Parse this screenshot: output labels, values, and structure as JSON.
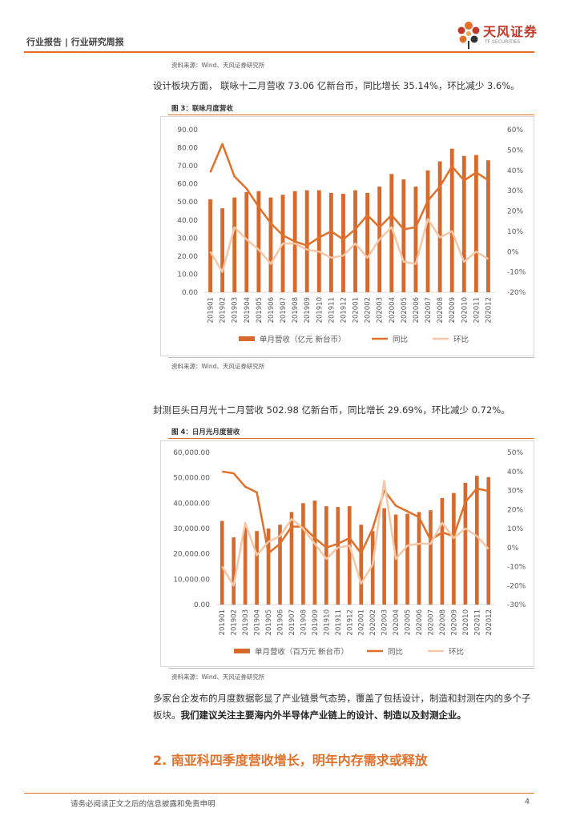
{
  "header": {
    "left_text": "行业报告 | 行业研究周报",
    "logo_main": "天风证券",
    "logo_sub": "TF SECURITIES"
  },
  "colors": {
    "accent": "#e0702a",
    "bar": "#d6692b",
    "yoy": "#e0702a",
    "mom": "#f6c6a6"
  },
  "source_top": "资料来源：Wind、天风证券研究所",
  "para1": "设计板块方面， 联咏十二月营收 73.06 亿新台币，同比增长 35.14%，环比减少 3.6%。",
  "fig3": {
    "label": "图 3：联咏月度营收",
    "source": "资料来源：Wind、天风证券研究所"
  },
  "para2": "封测巨头日月光十二月营收 502.98 亿新台币，同比增长 29.69%，环比减少 0.72%。",
  "fig4": {
    "label": "图 4：日月光月度营收",
    "source": "资料来源：Wind、天风证券研究所"
  },
  "para3": {
    "normal": "多家台企发布的月度数据彰显了产业链景气态势，覆盖了包括设计，制造和封测在内的多个子板块。",
    "bold": "我们建议关注主要海内外半导体产业链上的设计、制造以及封测企业。"
  },
  "section_title": "2. 南亚科四季度营收增长，明年内存需求或释放",
  "footer": {
    "disclaimer": "请务必阅读正文之后的信息披露和免责申明",
    "page": "4"
  },
  "chart_data": [
    {
      "type": "bar",
      "categories": [
        "201901",
        "201902",
        "201903",
        "201904",
        "201905",
        "201906",
        "201907",
        "201908",
        "201909",
        "201910",
        "201911",
        "201912",
        "202001",
        "202002",
        "202003",
        "202004",
        "202005",
        "202006",
        "202007",
        "202008",
        "202009",
        "202010",
        "202011",
        "202012"
      ],
      "yticks": [
        "90.00",
        "80.00",
        "70.00",
        "60.00",
        "50.00",
        "40.00",
        "30.00",
        "20.00",
        "10.00",
        "0.00"
      ],
      "y2ticks": [
        "60%",
        "50%",
        "40%",
        "30%",
        "20%",
        "10%",
        "0%",
        "-10%",
        "-20%"
      ],
      "ylim": [
        0,
        90
      ],
      "y2lim": [
        -20,
        60
      ],
      "series": [
        {
          "name": "单月营收（亿元 新台币）",
          "kind": "bar",
          "axis": "left",
          "values": [
            51.5,
            46.5,
            52.5,
            55.5,
            56,
            52.5,
            54,
            56,
            56.5,
            56.5,
            55,
            54.5,
            56.5,
            55,
            58.5,
            65.5,
            62.5,
            58.5,
            67.5,
            72.5,
            79.5,
            75.5,
            76,
            73.06
          ]
        },
        {
          "name": "同比",
          "kind": "line",
          "axis": "right",
          "values": [
            39,
            53,
            37,
            31,
            22,
            14,
            8,
            5,
            3,
            7,
            10,
            6,
            11,
            18,
            12,
            18,
            11,
            12,
            25,
            32,
            42,
            35,
            39,
            35.14
          ]
        },
        {
          "name": "环比",
          "kind": "line",
          "axis": "right",
          "values": [
            0,
            -10,
            12,
            6,
            1,
            -6,
            4,
            4,
            1,
            0,
            -3,
            -2,
            4,
            -3,
            6,
            12,
            -5,
            -6,
            16,
            7,
            10,
            -5,
            0,
            -3.6
          ]
        }
      ]
    },
    {
      "type": "bar",
      "categories": [
        "201901",
        "201902",
        "201903",
        "201904",
        "201905",
        "201906",
        "201907",
        "201908",
        "201909",
        "201910",
        "201911",
        "201912",
        "202001",
        "202002",
        "202003",
        "202004",
        "202005",
        "202006",
        "202007",
        "202008",
        "202009",
        "202010",
        "202011",
        "202012"
      ],
      "yticks": [
        "60,000.00",
        "50,000.00",
        "40,000.00",
        "30,000.00",
        "20,000.00",
        "10,000.00",
        "0.00"
      ],
      "y2ticks": [
        "50%",
        "40%",
        "30%",
        "20%",
        "10%",
        "0%",
        "-10%",
        "-20%",
        "-30%"
      ],
      "ylim": [
        0,
        60000
      ],
      "y2lim": [
        -30,
        50
      ],
      "series": [
        {
          "name": "单月营收（百万元 新台币）",
          "kind": "bar",
          "axis": "left",
          "values": [
            33000,
            26500,
            30500,
            29000,
            30000,
            31500,
            36500,
            40000,
            41000,
            38800,
            38500,
            38800,
            31500,
            29000,
            38000,
            35500,
            35800,
            36500,
            37200,
            42000,
            44000,
            48000,
            50800,
            50298
          ]
        },
        {
          "name": "同比",
          "kind": "line",
          "axis": "right",
          "values": [
            40,
            39,
            32,
            29,
            -3,
            2,
            11,
            11,
            5,
            0,
            2,
            5,
            -3,
            10,
            30,
            22,
            19,
            16,
            4,
            8,
            6,
            24,
            31,
            29.69
          ]
        },
        {
          "name": "环比",
          "kind": "line",
          "axis": "right",
          "values": [
            -10,
            -20,
            13,
            -4,
            3,
            6,
            15,
            10,
            2,
            -6,
            0,
            1,
            -19,
            -9,
            35,
            -6,
            1,
            2,
            2,
            13,
            5,
            10,
            6,
            -0.72
          ]
        }
      ]
    }
  ]
}
